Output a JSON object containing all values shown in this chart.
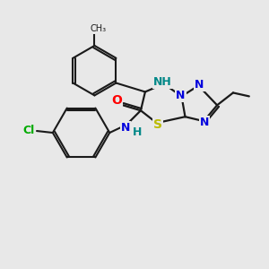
{
  "background_color": "#e8e8e8",
  "bond_color": "#1a1a1a",
  "atom_colors": {
    "N": "#0000dd",
    "O": "#ff0000",
    "S": "#bbbb00",
    "Cl": "#00aa00",
    "NH_teal": "#008888",
    "H_teal": "#008888",
    "C": "#1a1a1a"
  },
  "figsize": [
    3.0,
    3.0
  ],
  "dpi": 100
}
